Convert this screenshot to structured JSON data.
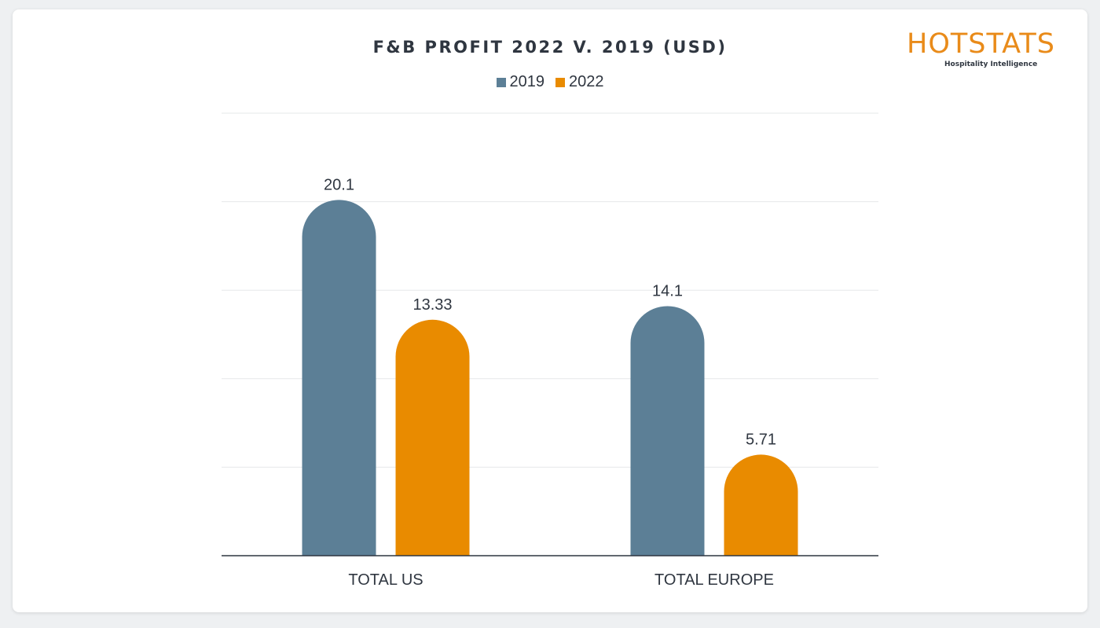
{
  "chart_data": {
    "type": "bar",
    "title": "F&B PROFIT 2022 V. 2019 (USD)",
    "categories": [
      "TOTAL US",
      "TOTAL EUROPE"
    ],
    "series": [
      {
        "name": "2019",
        "color": "#5c7f96",
        "values": [
          20.1,
          14.1
        ],
        "labels": [
          "20.1",
          "14.1"
        ]
      },
      {
        "name": "2022",
        "color": "#e98b00",
        "values": [
          13.33,
          5.71
        ],
        "labels": [
          "13.33",
          "5.71"
        ]
      }
    ],
    "ylim": [
      0,
      25
    ],
    "grid": true,
    "legend": "top-center",
    "xlabel": "",
    "ylabel": ""
  },
  "logo": {
    "word": "HOTSTATS",
    "tagline": "Hospitality Intelligence",
    "color": "#e98b1a"
  }
}
